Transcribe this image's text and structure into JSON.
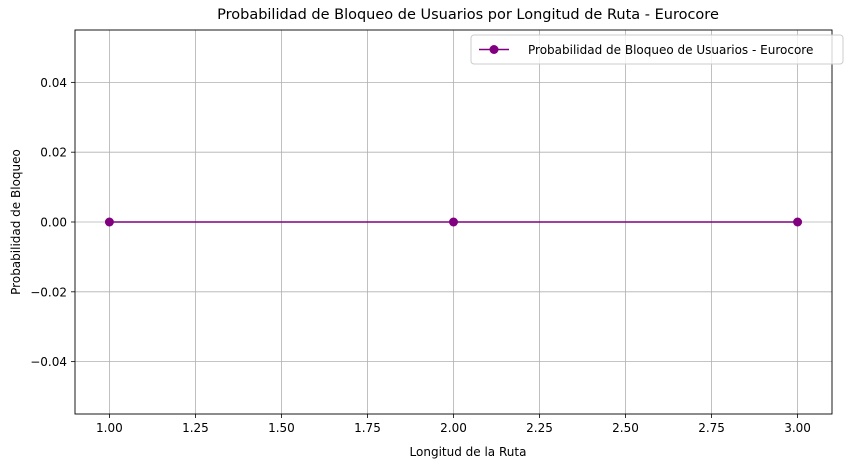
{
  "chart_data": {
    "type": "line",
    "title": "Probabilidad de Bloqueo de Usuarios por Longitud de Ruta - Eurocore",
    "xlabel": "Longitud de la Ruta",
    "ylabel": "Probabilidad de Bloqueo",
    "xlim": [
      0.9,
      3.1
    ],
    "ylim": [
      -0.055,
      0.055
    ],
    "xticks": [
      1.0,
      1.25,
      1.5,
      1.75,
      2.0,
      2.25,
      2.5,
      2.75,
      3.0
    ],
    "xtick_labels": [
      "1.00",
      "1.25",
      "1.50",
      "1.75",
      "2.00",
      "2.25",
      "2.50",
      "2.75",
      "3.00"
    ],
    "yticks": [
      -0.04,
      -0.02,
      0.0,
      0.02,
      0.04
    ],
    "ytick_labels": [
      "−0.04",
      "−0.02",
      "0.00",
      "0.02",
      "0.04"
    ],
    "grid": true,
    "legend_position": "top-right",
    "series": [
      {
        "name": "Probabilidad de Bloqueo de Usuarios - Eurocore",
        "x": [
          1,
          2,
          3
        ],
        "y": [
          0.0,
          0.0,
          0.0
        ],
        "color": "#800080",
        "marker": "circle"
      }
    ]
  }
}
